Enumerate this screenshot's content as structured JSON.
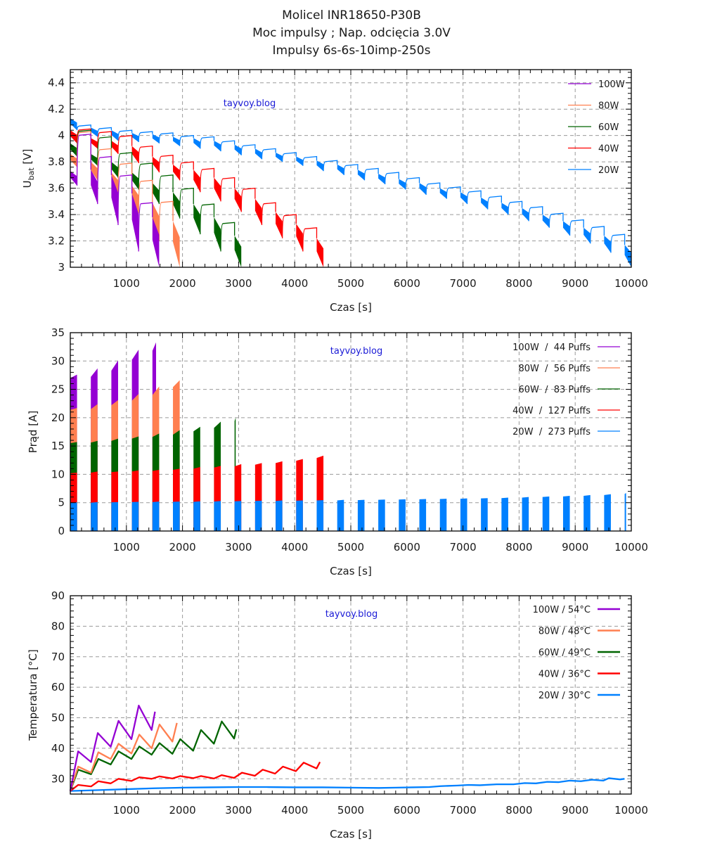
{
  "title": {
    "line1": "Molicel INR18650-P30B",
    "line2": "Moc impulsy ; Nap. odcięcia 3.0V",
    "line3": "Impulsy 6s-6s-10imp-250s"
  },
  "watermark": "tayvoy.blog",
  "colors": {
    "100W": "#9400d3",
    "80W": "#ff7f50",
    "60W": "#006400",
    "40W": "#ff0000",
    "20W": "#0080ff"
  },
  "chart_data": [
    {
      "type": "area",
      "title": "",
      "xlabel": "Czas [s]",
      "ylabel": "U_bat [V]",
      "ylabel_main": "U",
      "ylabel_sub": "bat",
      "ylabel_unit": " [V]",
      "xlim": [
        0,
        10000
      ],
      "ylim": [
        3.0,
        4.5
      ],
      "xticks": [
        1000,
        2000,
        3000,
        4000,
        5000,
        6000,
        7000,
        8000,
        9000,
        10000
      ],
      "yticks": [
        3,
        3.2,
        3.4,
        3.6,
        3.8,
        4,
        4.2,
        4.4
      ],
      "ytick_labels": [
        "3",
        "3.2",
        "3.4",
        "3.6",
        "3.8",
        "4",
        "4.2",
        "4.4"
      ],
      "grid": true,
      "legend_position": "top-right",
      "group_period_s": 366,
      "pulse_span_s": 120,
      "series": [
        {
          "name": "100W",
          "rest_v": [
            4.01,
            3.84,
            3.7,
            3.49
          ],
          "pulse_top": [
            3.73,
            3.74,
            3.7,
            3.56,
            3.38
          ],
          "pulse_bottom": [
            3.62,
            3.48,
            3.32,
            3.12,
            3.0
          ]
        },
        {
          "name": "80W",
          "rest_v": [
            4.03,
            3.9,
            3.79,
            3.66,
            3.5
          ],
          "pulse_top": [
            3.86,
            3.8,
            3.72,
            3.62,
            3.49,
            3.35
          ],
          "pulse_bottom": [
            3.76,
            3.66,
            3.55,
            3.41,
            3.2,
            3.0
          ]
        },
        {
          "name": "60W",
          "rest_v": [
            4.04,
            3.99,
            3.87,
            3.79,
            3.7,
            3.6,
            3.48,
            3.34
          ],
          "pulse_top": [
            3.94,
            3.86,
            3.8,
            3.72,
            3.64,
            3.57,
            3.48,
            3.38,
            3.24
          ],
          "pulse_bottom": [
            3.84,
            3.77,
            3.68,
            3.59,
            3.48,
            3.37,
            3.25,
            3.12,
            3.0
          ]
        },
        {
          "name": "40W",
          "rest_v": [
            4.05,
            4.03,
            4.0,
            3.92,
            3.85,
            3.8,
            3.75,
            3.68,
            3.6,
            3.49,
            3.4,
            3.3
          ],
          "pulse_top": [
            4.04,
            3.98,
            3.96,
            3.92,
            3.84,
            3.78,
            3.74,
            3.68,
            3.6,
            3.52,
            3.42,
            3.33,
            3.22
          ],
          "pulse_bottom": [
            3.94,
            3.9,
            3.86,
            3.79,
            3.72,
            3.66,
            3.57,
            3.5,
            3.42,
            3.32,
            3.22,
            3.12,
            3.0
          ]
        },
        {
          "name": "20W",
          "rest_v": [
            4.08,
            4.06,
            4.04,
            4.03,
            4.02,
            4.0,
            3.99,
            3.96,
            3.93,
            3.9,
            3.87,
            3.84,
            3.81,
            3.78,
            3.75,
            3.72,
            3.68,
            3.64,
            3.61,
            3.58,
            3.54,
            3.5,
            3.46,
            3.41,
            3.36,
            3.31,
            3.25,
            3.19
          ],
          "pulse_top": [
            4.13,
            4.06,
            4.04,
            4.02,
            4.01,
            3.99,
            3.98,
            3.96,
            3.93,
            3.9,
            3.87,
            3.84,
            3.81,
            3.78,
            3.74,
            3.71,
            3.67,
            3.64,
            3.6,
            3.57,
            3.53,
            3.49,
            3.45,
            3.4,
            3.35,
            3.3,
            3.24,
            3.17
          ],
          "pulse_bottom": [
            4.04,
            3.99,
            3.96,
            3.95,
            3.94,
            3.92,
            3.9,
            3.88,
            3.85,
            3.82,
            3.8,
            3.77,
            3.73,
            3.7,
            3.66,
            3.63,
            3.59,
            3.55,
            3.52,
            3.48,
            3.44,
            3.4,
            3.35,
            3.3,
            3.24,
            3.18,
            3.11,
            3.0
          ]
        }
      ]
    },
    {
      "type": "bar",
      "title": "",
      "xlabel": "Czas [s]",
      "ylabel": "Prąd [A]",
      "xlim": [
        0,
        10000
      ],
      "ylim": [
        0,
        35
      ],
      "xticks": [
        1000,
        2000,
        3000,
        4000,
        5000,
        6000,
        7000,
        8000,
        9000,
        10000
      ],
      "yticks": [
        0,
        5,
        10,
        15,
        20,
        25,
        30,
        35
      ],
      "grid": true,
      "legend_position": "top-right",
      "group_period_s": 366,
      "pulse_span_s": 120,
      "series": [
        {
          "name": "100W",
          "legend": "100W  /  44 Puffs",
          "puffs": 44,
          "current_start": [
            27.0,
            27.2,
            28.3,
            30.2,
            31.8
          ],
          "current_end": [
            27.6,
            28.7,
            30.1,
            32.0,
            33.3
          ]
        },
        {
          "name": "80W",
          "legend": "80W  /  56 Puffs",
          "puffs": 56,
          "current_start": [
            21.4,
            21.5,
            22.2,
            23.0,
            24.0,
            25.4
          ],
          "current_end": [
            21.7,
            22.4,
            23.1,
            24.2,
            25.5,
            26.6
          ]
        },
        {
          "name": "60W",
          "legend": "60W  /  83 Puffs",
          "puffs": 83,
          "current_start": [
            15.5,
            15.6,
            15.9,
            16.3,
            16.6,
            17.0,
            17.6,
            18.2,
            19.4
          ],
          "current_end": [
            15.7,
            15.9,
            16.3,
            16.7,
            17.2,
            17.8,
            18.4,
            19.3,
            20.0
          ]
        },
        {
          "name": "40W",
          "legend": "40W  /  127 Puffs",
          "puffs": 127,
          "current_start": [
            10.2,
            10.3,
            10.4,
            10.5,
            10.6,
            10.8,
            11.0,
            11.2,
            11.4,
            11.7,
            12.0,
            12.4,
            12.9
          ],
          "current_end": [
            10.3,
            10.5,
            10.5,
            10.7,
            10.8,
            11.0,
            11.3,
            11.5,
            11.8,
            12.0,
            12.3,
            12.7,
            13.3
          ]
        },
        {
          "name": "20W",
          "legend": "20W  /  273 Puffs",
          "puffs": 273,
          "current_start": [
            5.0,
            5.0,
            5.05,
            5.1,
            5.1,
            5.15,
            5.15,
            5.2,
            5.25,
            5.3,
            5.3,
            5.35,
            5.4,
            5.4,
            5.45,
            5.5,
            5.55,
            5.6,
            5.65,
            5.7,
            5.75,
            5.8,
            5.9,
            6.0,
            6.1,
            6.2,
            6.35,
            6.55
          ],
          "current_end": [
            5.05,
            5.1,
            5.1,
            5.15,
            5.2,
            5.2,
            5.25,
            5.3,
            5.3,
            5.35,
            5.4,
            5.4,
            5.45,
            5.5,
            5.5,
            5.55,
            5.6,
            5.65,
            5.7,
            5.75,
            5.8,
            5.9,
            6.0,
            6.1,
            6.2,
            6.35,
            6.5,
            6.7
          ]
        }
      ]
    },
    {
      "type": "line",
      "title": "",
      "xlabel": "Czas [s]",
      "ylabel": "Temperatura [°C]",
      "xlim": [
        0,
        10000
      ],
      "ylim": [
        25,
        90
      ],
      "xticks": [
        1000,
        2000,
        3000,
        4000,
        5000,
        6000,
        7000,
        8000,
        9000,
        10000
      ],
      "yticks": [
        30,
        40,
        50,
        60,
        70,
        80,
        90
      ],
      "grid": true,
      "legend_position": "top-right",
      "series": [
        {
          "name": "100W",
          "legend": "100W / 54°C",
          "max_c": 54,
          "x": [
            0,
            140,
            370,
            490,
            720,
            860,
            1090,
            1220,
            1450,
            1510
          ],
          "y": [
            26,
            39,
            35.5,
            45,
            40.5,
            49,
            43,
            54,
            46,
            52
          ]
        },
        {
          "name": "80W",
          "legend": "80W / 48°C",
          "x": [
            0,
            140,
            370,
            500,
            720,
            860,
            1090,
            1230,
            1450,
            1590,
            1820,
            1900
          ],
          "y": [
            26,
            34,
            32,
            38.7,
            36.5,
            41.5,
            38.3,
            44.5,
            40,
            47.8,
            42.2,
            48.3
          ],
          "max_c": 48
        },
        {
          "name": "60W",
          "legend": "60W / 49°C",
          "max_c": 49,
          "x": [
            0,
            140,
            370,
            500,
            720,
            860,
            1090,
            1230,
            1450,
            1590,
            1820,
            1960,
            2190,
            2330,
            2560,
            2700,
            2920,
            2960
          ],
          "y": [
            26,
            33,
            31.5,
            36.5,
            34.7,
            39,
            36.5,
            40.6,
            37.9,
            41.7,
            38.2,
            43,
            39.2,
            46,
            41.5,
            48.8,
            43.2,
            46.2
          ]
        },
        {
          "name": "40W",
          "legend": "40W / 36°C",
          "max_c": 36,
          "x": [
            0,
            140,
            370,
            500,
            720,
            860,
            1090,
            1230,
            1450,
            1590,
            1820,
            1960,
            2190,
            2330,
            2560,
            2700,
            2920,
            3060,
            3290,
            3430,
            3650,
            3790,
            4020,
            4160,
            4390,
            4450
          ],
          "y": [
            26,
            28,
            27.5,
            29.2,
            28.5,
            30,
            29.3,
            30.5,
            30,
            30.8,
            30.1,
            30.9,
            30.2,
            30.9,
            30.1,
            31.2,
            30.3,
            32,
            31,
            33,
            31.7,
            34,
            32.5,
            35.3,
            33.4,
            35.5
          ]
        },
        {
          "name": "20W",
          "legend": "20W / 30°C",
          "max_c": 30,
          "x": [
            0,
            500,
            1000,
            1500,
            2000,
            2500,
            3000,
            3500,
            4000,
            4500,
            5000,
            5500,
            5800,
            6100,
            6400,
            6600,
            6900,
            7100,
            7300,
            7600,
            7900,
            8100,
            8300,
            8500,
            8700,
            8900,
            9100,
            9300,
            9500,
            9600,
            9800,
            9880
          ],
          "y": [
            26,
            26.3,
            26.6,
            26.9,
            27.1,
            27.2,
            27.3,
            27.3,
            27.2,
            27.2,
            27.1,
            27.0,
            27.1,
            27.2,
            27.3,
            27.6,
            27.8,
            28.0,
            27.9,
            28.2,
            28.2,
            28.6,
            28.5,
            29.0,
            28.9,
            29.4,
            29.2,
            29.7,
            29.4,
            30.2,
            29.8,
            30.0
          ]
        }
      ]
    }
  ]
}
